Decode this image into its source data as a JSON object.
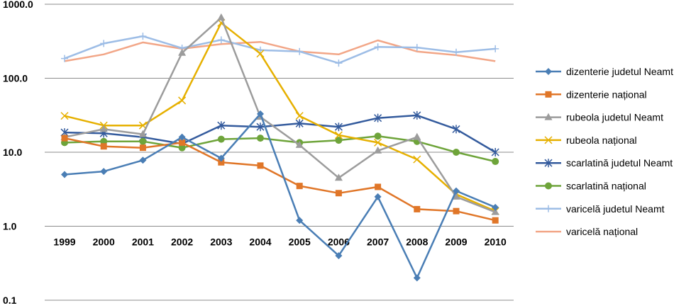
{
  "chart_data": {
    "type": "line",
    "title": "",
    "xlabel": "",
    "ylabel": "",
    "yscale": "log",
    "ylim": [
      0.1,
      1000
    ],
    "y_ticks": [
      "1000.0",
      "100.0",
      "10.0",
      "1.0",
      "0.1"
    ],
    "grid": "horizontal",
    "legend_position": "right",
    "categories": [
      "1999",
      "2000",
      "2001",
      "2002",
      "2003",
      "2004",
      "2005",
      "2006",
      "2007",
      "2008",
      "2009",
      "2010"
    ],
    "series": [
      {
        "name": "dizenterie judetul Neamt",
        "color": "#4a7eb5",
        "marker": "diamond",
        "values": [
          5.0,
          5.5,
          7.8,
          16,
          8.3,
          33,
          1.2,
          0.4,
          2.5,
          0.2,
          3.0,
          1.8
        ]
      },
      {
        "name": "dizenterie național",
        "color": "#e07628",
        "marker": "square",
        "values": [
          15.5,
          12,
          11.5,
          13.5,
          7.3,
          6.6,
          3.5,
          2.8,
          3.4,
          1.7,
          1.6,
          1.2
        ]
      },
      {
        "name": "rubeola judetul Neamt",
        "color": "#9c9c9c",
        "marker": "triangle",
        "values": [
          16,
          20.5,
          17.5,
          220,
          660,
          30,
          12.5,
          4.5,
          10.5,
          16,
          2.5,
          1.55
        ]
      },
      {
        "name": "rubeola național",
        "color": "#e6b000",
        "marker": "x",
        "values": [
          31,
          23,
          23,
          50,
          560,
          215,
          31,
          17,
          13.5,
          8.0,
          2.7,
          1.6
        ]
      },
      {
        "name": "scarlatină judetul Neamt",
        "color": "#345b9d",
        "marker": "star",
        "values": [
          18.5,
          18,
          16,
          13,
          23,
          22,
          24.5,
          22,
          29,
          31.5,
          20.5,
          10
        ]
      },
      {
        "name": "scarlatină național",
        "color": "#6ea43a",
        "marker": "circle",
        "values": [
          13.5,
          14,
          14,
          11.5,
          15,
          15.5,
          13.5,
          14.5,
          16.5,
          14,
          10,
          7.5
        ]
      },
      {
        "name": "varicelă judetul Neamt",
        "color": "#9dbde6",
        "marker": "plus",
        "values": [
          185,
          295,
          370,
          255,
          330,
          240,
          230,
          160,
          265,
          260,
          225,
          250
        ]
      },
      {
        "name": "varicelă național",
        "color": "#f2a687",
        "marker": "none",
        "values": [
          170,
          210,
          305,
          250,
          290,
          310,
          230,
          210,
          325,
          230,
          205,
          170
        ]
      }
    ]
  }
}
